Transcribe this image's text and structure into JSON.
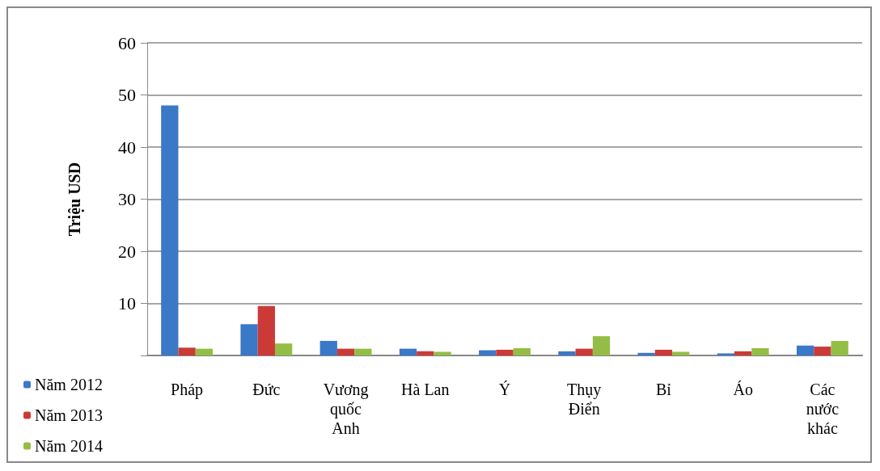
{
  "chart_data": {
    "type": "bar",
    "ylabel": "Triệu USD",
    "categories": [
      "Pháp",
      "Đức",
      "Vương quốc Anh",
      "Hà Lan",
      "Ý",
      "Thụy Điển",
      "Bỉ",
      "Áo",
      "Các nước khác"
    ],
    "series": [
      {
        "name": "Năm 2012",
        "color": "#3a78c8",
        "values": [
          48,
          6.0,
          2.8,
          1.3,
          1.0,
          0.8,
          0.5,
          0.4,
          1.9
        ]
      },
      {
        "name": "Năm 2013",
        "color": "#cc3a38",
        "values": [
          1.5,
          9.5,
          1.3,
          0.8,
          1.1,
          1.3,
          1.1,
          0.8,
          1.7
        ]
      },
      {
        "name": "Năm 2014",
        "color": "#94bd45",
        "values": [
          1.3,
          2.3,
          1.3,
          0.7,
          1.4,
          3.7,
          0.7,
          1.4,
          2.8
        ]
      }
    ],
    "ylim": [
      0,
      60
    ],
    "yticks": [
      {
        "value": 0,
        "label": null
      },
      10,
      20,
      30,
      40,
      50,
      60
    ],
    "grid": "y",
    "legend": "bottom left"
  }
}
